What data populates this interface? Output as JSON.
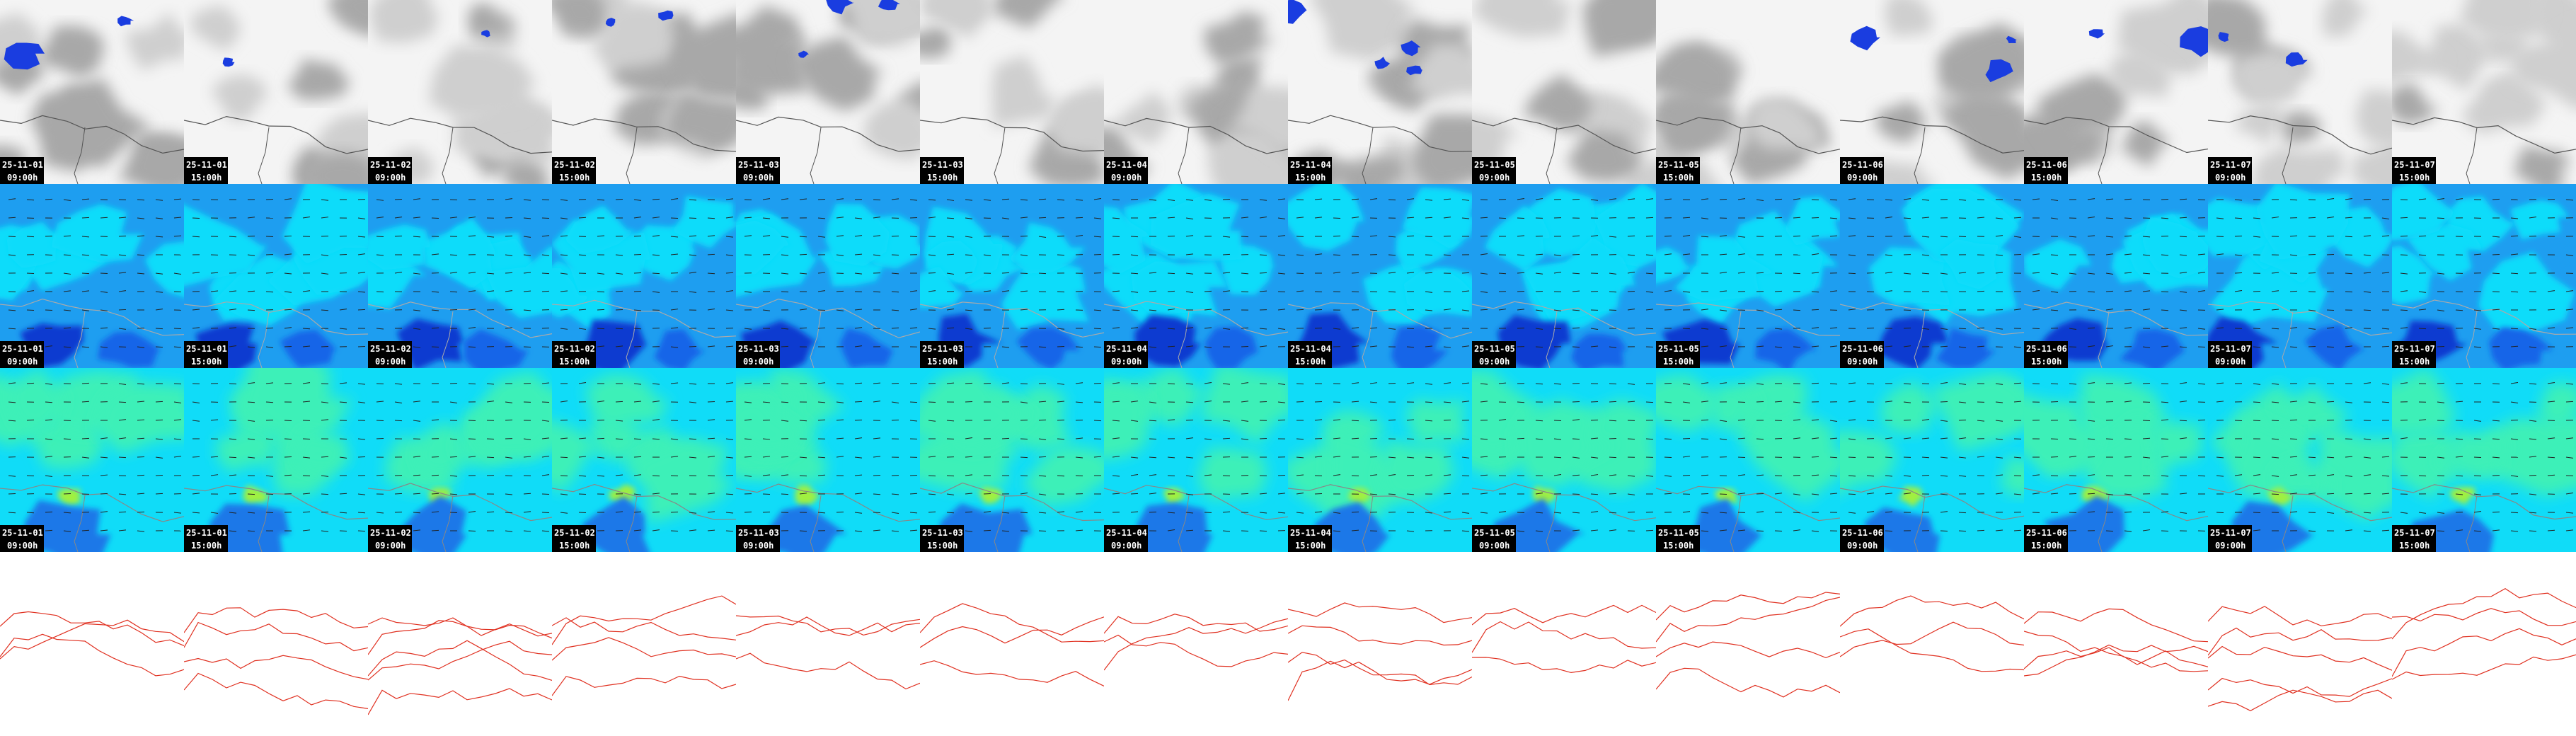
{
  "columns": [
    {
      "date": "25-11-01",
      "time": "09:00h"
    },
    {
      "date": "25-11-01",
      "time": "15:00h"
    },
    {
      "date": "25-11-02",
      "time": "09:00h"
    },
    {
      "date": "25-11-02",
      "time": "15:00h"
    },
    {
      "date": "25-11-03",
      "time": "09:00h"
    },
    {
      "date": "25-11-03",
      "time": "15:00h"
    },
    {
      "date": "25-11-04",
      "time": "09:00h"
    },
    {
      "date": "25-11-04",
      "time": "15:00h"
    },
    {
      "date": "25-11-05",
      "time": "09:00h"
    },
    {
      "date": "25-11-05",
      "time": "15:00h"
    },
    {
      "date": "25-11-06",
      "time": "09:00h"
    },
    {
      "date": "25-11-06",
      "time": "15:00h"
    },
    {
      "date": "25-11-07",
      "time": "09:00h"
    },
    {
      "date": "25-11-07",
      "time": "15:00h"
    }
  ]
}
